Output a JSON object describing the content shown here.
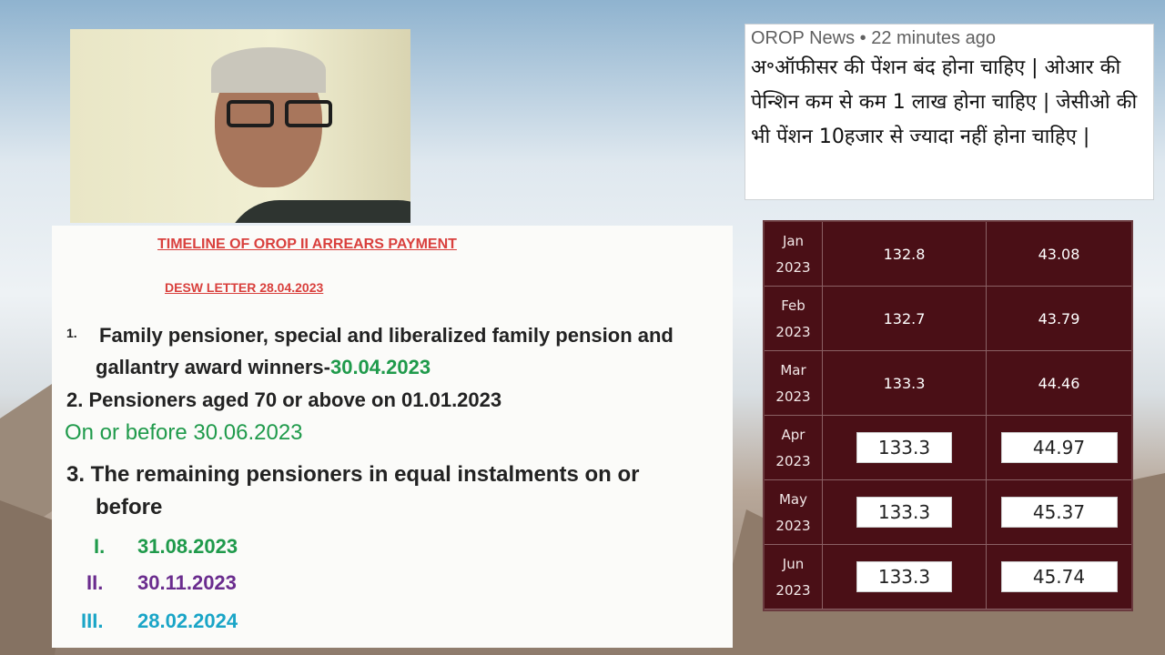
{
  "news": {
    "source": "OROP News • 22 minutes ago",
    "text": "अ॰ऑफीसर की पेंशन बंद होना चाहिए | ओआर की पेन्शिन कम से कम 1 लाख होना चाहिए | जेसीओ की भी पेंशन 10हजार से ज्यादा नहीं होना चाहिए |"
  },
  "doc": {
    "title": "TIMELINE OF OROP II ARREARS PAYMENT",
    "subtitle": "DESW LETTER 28.04.2023",
    "item1_num": "1.",
    "item1_a": "Family pensioner, special and liberalized family pension and",
    "item1_b": "gallantry award winners-",
    "item1_date": "30.04.2023",
    "item2": "2. Pensioners aged 70 or above on 01.01.2023",
    "item2_date": "On or before 30.06.2023",
    "item3_a": "3. The remaining pensioners in equal instalments on or",
    "item3_b": "before",
    "sub": [
      {
        "num": "I.",
        "date": "31.08.2023"
      },
      {
        "num": "II.",
        "date": "30.11.2023"
      },
      {
        "num": "III.",
        "date": "28.02.2024"
      }
    ]
  },
  "table": {
    "rows": [
      {
        "month": "Jan",
        "year": "2023",
        "a": "132.8",
        "b": "43.08"
      },
      {
        "month": "Feb",
        "year": "2023",
        "a": "132.7",
        "b": "43.79"
      },
      {
        "month": "Mar",
        "year": "2023",
        "a": "133.3",
        "b": "44.46"
      },
      {
        "month": "Apr",
        "year": "2023",
        "a": "133.3",
        "b": "44.97"
      },
      {
        "month": "May",
        "year": "2023",
        "a": "133.3",
        "b": "45.37"
      },
      {
        "month": "Jun",
        "year": "2023",
        "a": "133.3",
        "b": "45.74"
      }
    ]
  }
}
